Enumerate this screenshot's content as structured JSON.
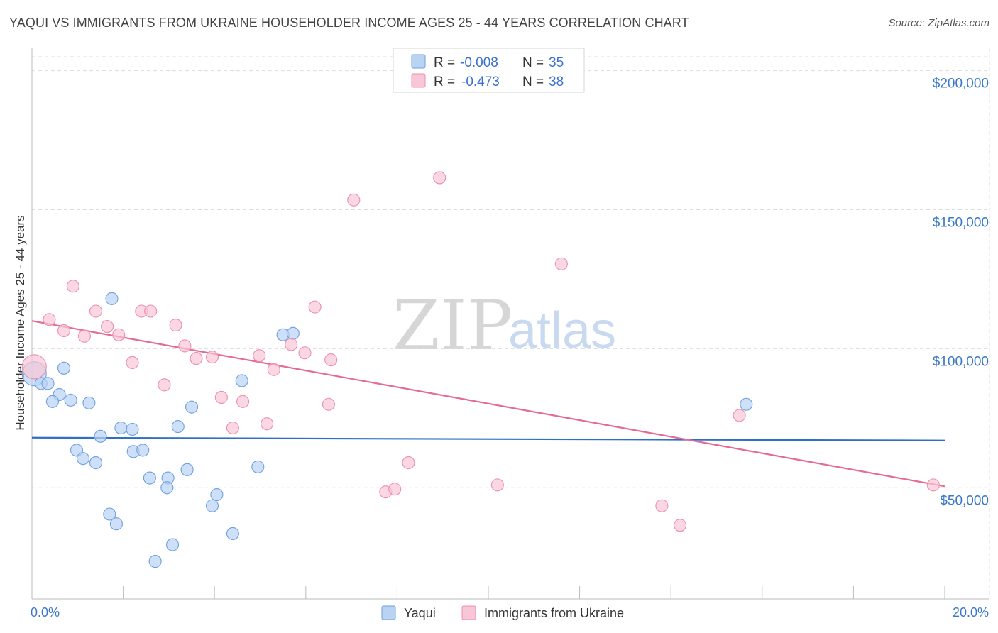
{
  "header": {
    "title": "YAQUI VS IMMIGRANTS FROM UKRAINE HOUSEHOLDER INCOME AGES 25 - 44 YEARS CORRELATION CHART",
    "source": "Source: ZipAtlas.com"
  },
  "colors": {
    "yaqui_fill": "#b9d3f3",
    "yaqui_stroke": "#6e9fe0",
    "yaqui_line": "#2f6fc8",
    "ukraine_fill": "#f8c6d6",
    "ukraine_stroke": "#ec8fac",
    "ukraine_line": "#e46b95",
    "axis_text": "#3a78c9",
    "grid": "#dddddd"
  },
  "legend": {
    "rows": [
      {
        "r_label": "R =",
        "r_value": "-0.008",
        "n_label": "N =",
        "n_value": "35"
      },
      {
        "r_label": "R =",
        "r_value": "-0.473",
        "n_label": "N =",
        "n_value": "38"
      }
    ]
  },
  "watermark": {
    "zip": "ZIP",
    "atlas": "atlas"
  },
  "chart_data": {
    "type": "scatter",
    "title": "YAQUI VS IMMIGRANTS FROM UKRAINE HOUSEHOLDER INCOME AGES 25 - 44 YEARS CORRELATION CHART",
    "ylabel": "Householder Income Ages 25 - 44 years",
    "xlabel": "",
    "xlim": [
      0,
      20
    ],
    "ylim": [
      10000,
      205000
    ],
    "x_tick_labels": [
      "0.0%",
      "20.0%"
    ],
    "y_ticks": [
      50000,
      100000,
      150000,
      200000
    ],
    "y_tick_labels": [
      "$50,000",
      "$100,000",
      "$150,000",
      "$200,000"
    ],
    "grid": "horizontal dashed",
    "legend_position": "top-center",
    "series": [
      {
        "name": "Yaqui",
        "points": [
          {
            "x": 0.05,
            "y": 91000,
            "size": "large"
          },
          {
            "x": 0.2,
            "y": 87500
          },
          {
            "x": 0.35,
            "y": 87500
          },
          {
            "x": 0.7,
            "y": 93000
          },
          {
            "x": 0.6,
            "y": 83500
          },
          {
            "x": 0.45,
            "y": 81000
          },
          {
            "x": 0.85,
            "y": 81500
          },
          {
            "x": 1.25,
            "y": 80500
          },
          {
            "x": 1.75,
            "y": 118000
          },
          {
            "x": 1.5,
            "y": 68500
          },
          {
            "x": 1.95,
            "y": 71500
          },
          {
            "x": 2.2,
            "y": 71000
          },
          {
            "x": 0.98,
            "y": 63500
          },
          {
            "x": 1.12,
            "y": 60500
          },
          {
            "x": 1.4,
            "y": 59000
          },
          {
            "x": 2.22,
            "y": 63000
          },
          {
            "x": 2.43,
            "y": 63500
          },
          {
            "x": 3.2,
            "y": 72000
          },
          {
            "x": 3.5,
            "y": 79000
          },
          {
            "x": 2.58,
            "y": 53500
          },
          {
            "x": 2.98,
            "y": 53500
          },
          {
            "x": 2.96,
            "y": 50000
          },
          {
            "x": 3.4,
            "y": 56500
          },
          {
            "x": 1.7,
            "y": 40500
          },
          {
            "x": 1.85,
            "y": 37000
          },
          {
            "x": 4.05,
            "y": 47500
          },
          {
            "x": 3.95,
            "y": 43500
          },
          {
            "x": 4.4,
            "y": 33500
          },
          {
            "x": 3.08,
            "y": 29500
          },
          {
            "x": 2.7,
            "y": 23500
          },
          {
            "x": 4.6,
            "y": 88500
          },
          {
            "x": 4.95,
            "y": 57500
          },
          {
            "x": 5.5,
            "y": 105000
          },
          {
            "x": 5.72,
            "y": 105500
          },
          {
            "x": 15.65,
            "y": 80000
          }
        ]
      },
      {
        "name": "Immigrants from Ukraine",
        "points": [
          {
            "x": 0.05,
            "y": 93500,
            "size": "large"
          },
          {
            "x": 0.38,
            "y": 110500
          },
          {
            "x": 0.7,
            "y": 106500
          },
          {
            "x": 0.9,
            "y": 122500
          },
          {
            "x": 1.15,
            "y": 104500
          },
          {
            "x": 1.4,
            "y": 113500
          },
          {
            "x": 1.65,
            "y": 108000
          },
          {
            "x": 1.9,
            "y": 105000
          },
          {
            "x": 2.2,
            "y": 95000
          },
          {
            "x": 2.4,
            "y": 113500
          },
          {
            "x": 2.6,
            "y": 113500
          },
          {
            "x": 2.9,
            "y": 87000
          },
          {
            "x": 3.15,
            "y": 108500
          },
          {
            "x": 3.35,
            "y": 101000
          },
          {
            "x": 3.6,
            "y": 96500
          },
          {
            "x": 3.95,
            "y": 97000
          },
          {
            "x": 4.15,
            "y": 82500
          },
          {
            "x": 4.4,
            "y": 71500
          },
          {
            "x": 4.62,
            "y": 81000
          },
          {
            "x": 4.98,
            "y": 97500
          },
          {
            "x": 5.15,
            "y": 73000
          },
          {
            "x": 5.3,
            "y": 92500
          },
          {
            "x": 5.68,
            "y": 101500
          },
          {
            "x": 5.98,
            "y": 98500
          },
          {
            "x": 6.2,
            "y": 115000
          },
          {
            "x": 6.5,
            "y": 80000
          },
          {
            "x": 6.55,
            "y": 96000
          },
          {
            "x": 7.05,
            "y": 153500
          },
          {
            "x": 7.75,
            "y": 48500
          },
          {
            "x": 7.95,
            "y": 49500
          },
          {
            "x": 8.25,
            "y": 59000
          },
          {
            "x": 8.93,
            "y": 161500
          },
          {
            "x": 10.2,
            "y": 51000
          },
          {
            "x": 11.6,
            "y": 130500
          },
          {
            "x": 13.8,
            "y": 43500
          },
          {
            "x": 14.2,
            "y": 36500
          },
          {
            "x": 15.5,
            "y": 76000
          },
          {
            "x": 19.75,
            "y": 51000
          }
        ]
      }
    ],
    "trendlines": [
      {
        "series": "Yaqui",
        "x": [
          0,
          20
        ],
        "y": [
          68000,
          67000
        ]
      },
      {
        "series": "Immigrants from Ukraine",
        "x": [
          0,
          20
        ],
        "y": [
          110000,
          50500
        ]
      }
    ]
  },
  "bottom_legend": [
    {
      "label": "Yaqui"
    },
    {
      "label": "Immigrants from Ukraine"
    }
  ]
}
